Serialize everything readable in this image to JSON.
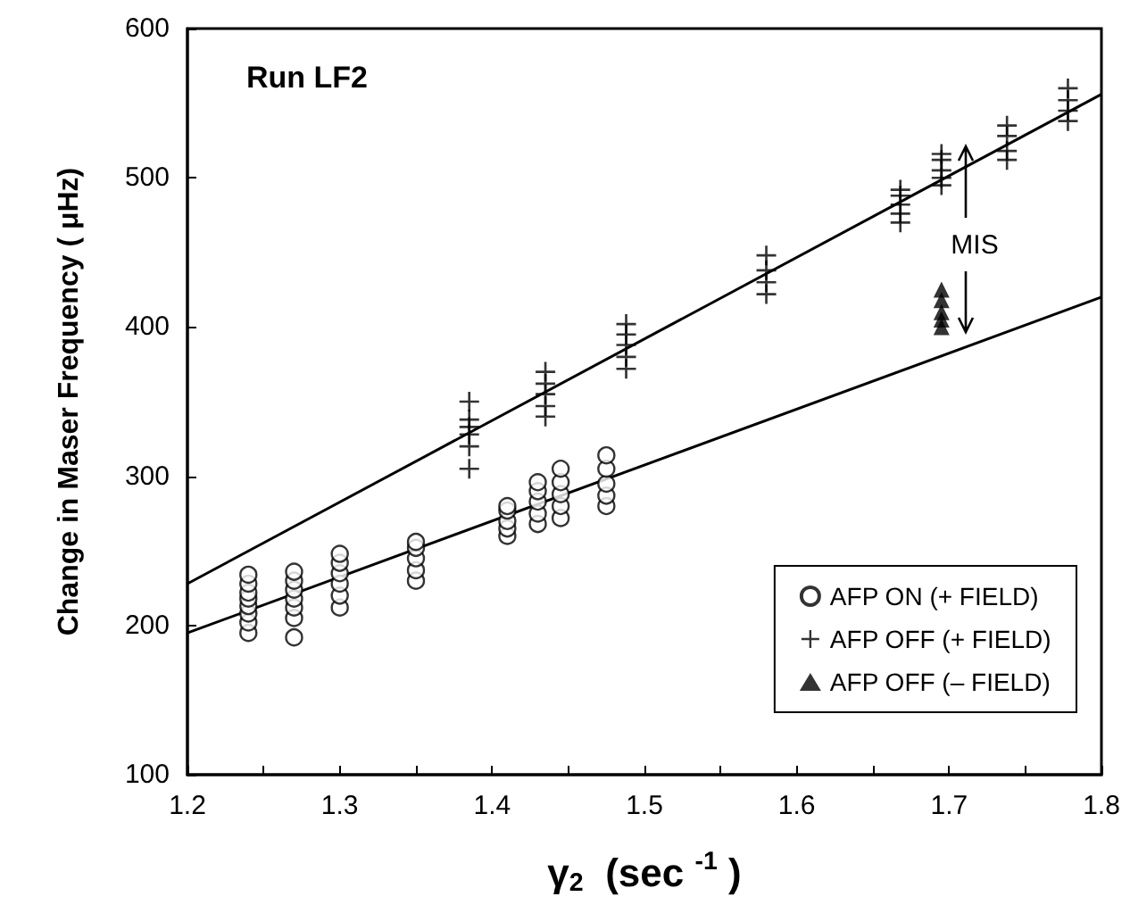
{
  "chart_data": {
    "type": "scatter",
    "title": "Run LF2",
    "xlabel": "γ$_{2}$  (sec $^{-1}$ )",
    "ylabel": "Change in Maser Frequency ( μHz)",
    "xlim": [
      1.2,
      1.8
    ],
    "ylim": [
      100,
      600
    ],
    "xticks": [
      1.2,
      {
        "value": 1.25,
        "label": null
      },
      1.3,
      {
        "value": 1.35,
        "label": null
      },
      1.4,
      {
        "value": 1.45,
        "label": null
      },
      1.5,
      {
        "value": 1.55,
        "label": null
      },
      1.6,
      {
        "value": 1.65,
        "label": null
      },
      1.7,
      {
        "value": 1.75,
        "label": null
      },
      1.8
    ],
    "yticks": [
      100,
      200,
      300,
      400,
      500,
      600
    ],
    "grid": false,
    "legend": "bottom right",
    "annotations": [
      "MIS"
    ],
    "series": [
      {
        "name": "AFP ON (+ FIELD)",
        "color": "#000000",
        "marker": "circle",
        "x": [
          1.24,
          1.24,
          1.24,
          1.24,
          1.24,
          1.24,
          1.24,
          1.24,
          1.27,
          1.27,
          1.27,
          1.27,
          1.27,
          1.27,
          1.27,
          1.3,
          1.3,
          1.3,
          1.3,
          1.3,
          1.3,
          1.35,
          1.35,
          1.35,
          1.35,
          1.35,
          1.41,
          1.41,
          1.41,
          1.41,
          1.41,
          1.43,
          1.43,
          1.43,
          1.43,
          1.43,
          1.445,
          1.445,
          1.445,
          1.445,
          1.445,
          1.475,
          1.475,
          1.475,
          1.475,
          1.475
        ],
        "values": [
          195,
          202,
          208,
          213,
          218,
          222,
          228,
          234,
          192,
          205,
          212,
          218,
          224,
          230,
          236,
          212,
          220,
          228,
          235,
          242,
          248,
          230,
          237,
          245,
          252,
          256,
          260,
          265,
          270,
          277,
          280,
          268,
          275,
          283,
          290,
          296,
          272,
          280,
          288,
          296,
          305,
          280,
          287,
          295,
          305,
          314
        ]
      },
      {
        "name": "AFP OFF (+ FIELD)",
        "color": "#000000",
        "marker": "cross",
        "x": [
          1.385,
          1.385,
          1.385,
          1.385,
          1.385,
          1.385,
          1.435,
          1.435,
          1.435,
          1.435,
          1.435,
          1.488,
          1.488,
          1.488,
          1.488,
          1.488,
          1.58,
          1.58,
          1.58,
          1.58,
          1.668,
          1.668,
          1.668,
          1.668,
          1.668,
          1.695,
          1.695,
          1.695,
          1.695,
          1.695,
          1.738,
          1.738,
          1.738,
          1.738,
          1.778,
          1.778,
          1.778,
          1.778
        ],
        "values": [
          305,
          320,
          328,
          333,
          338,
          350,
          340,
          347,
          355,
          362,
          370,
          372,
          380,
          388,
          395,
          402,
          422,
          430,
          438,
          448,
          470,
          476,
          482,
          488,
          492,
          495,
          500,
          505,
          512,
          516,
          512,
          518,
          528,
          535,
          538,
          545,
          552,
          560
        ]
      },
      {
        "name": "AFP OFF (– FIELD)",
        "color": "#000000",
        "marker": "triangle",
        "x": [
          1.695,
          1.695,
          1.695,
          1.695,
          1.695
        ],
        "values": [
          400,
          405,
          410,
          418,
          425
        ]
      },
      {
        "type": "line",
        "color": "#000000",
        "marker": "none",
        "x": [
          1.2,
          1.8
        ],
        "values": [
          228,
          556
        ]
      },
      {
        "type": "line",
        "color": "#000000",
        "marker": "none",
        "x": [
          1.2,
          1.8
        ],
        "values": [
          195,
          420
        ]
      }
    ]
  }
}
